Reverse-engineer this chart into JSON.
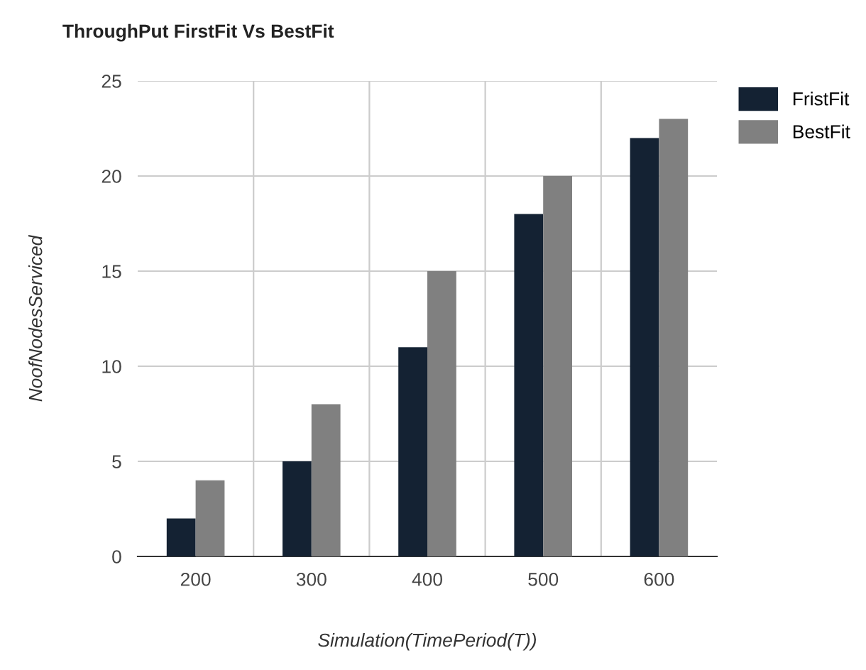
{
  "chart_data": {
    "type": "bar",
    "title": "ThroughPut FirstFit Vs BestFit",
    "xlabel": "Simulation(TimePeriod(T))",
    "ylabel": "NoofNodesServiced",
    "categories": [
      "200",
      "300",
      "400",
      "500",
      "600"
    ],
    "series": [
      {
        "name": "FristFit",
        "color": "#142233",
        "values": [
          2,
          5,
          11,
          18,
          22
        ]
      },
      {
        "name": "BestFit",
        "color": "#808080",
        "values": [
          4,
          8,
          15,
          20,
          23
        ]
      }
    ],
    "ylim": [
      0,
      25
    ],
    "yticks": [
      0,
      5,
      10,
      15,
      20,
      25
    ],
    "grid": true,
    "legend": "top right"
  }
}
